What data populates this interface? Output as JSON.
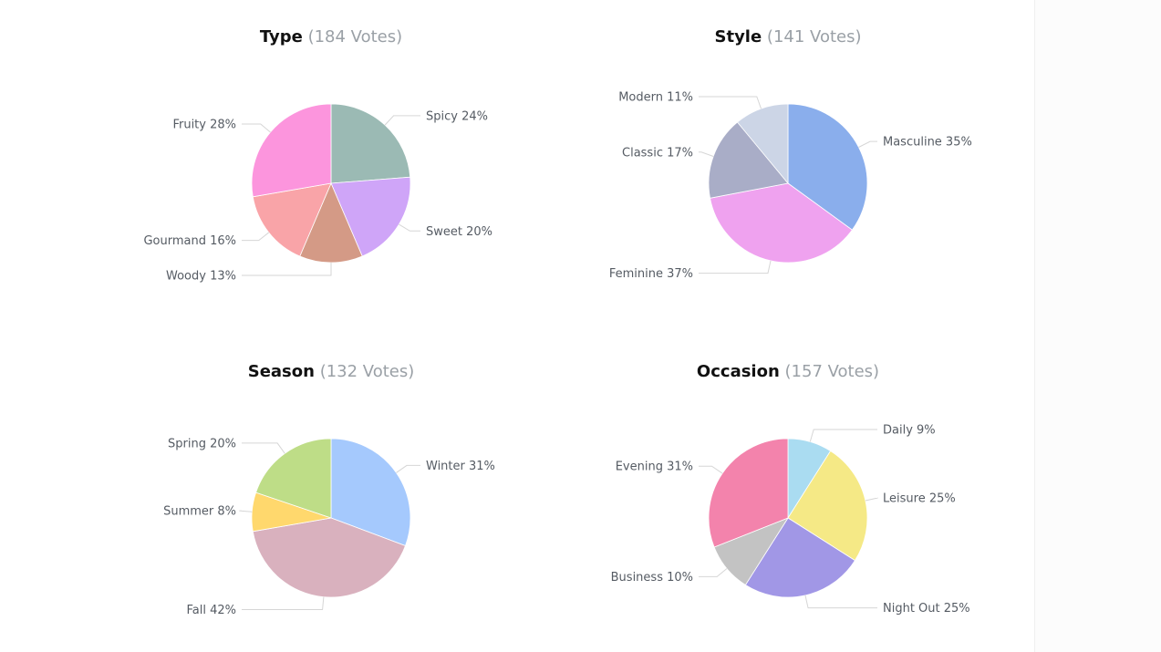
{
  "chart_data": [
    {
      "type": "pie",
      "title": "Type",
      "votes": "(184 Votes)",
      "slices": [
        {
          "label": "Spicy 24%",
          "value": 24,
          "color": "#9bbab4"
        },
        {
          "label": "Sweet 20%",
          "value": 20,
          "color": "#cfa5f8"
        },
        {
          "label": "Woody 13%",
          "value": 13,
          "color": "#d49a86"
        },
        {
          "label": "Gourmand 16%",
          "value": 16,
          "color": "#f9a4a8"
        },
        {
          "label": "Fruity 28%",
          "value": 28,
          "color": "#fc95dd"
        }
      ]
    },
    {
      "type": "pie",
      "title": "Style",
      "votes": "(141 Votes)",
      "slices": [
        {
          "label": "Masculine 35%",
          "value": 35,
          "color": "#8aaeec"
        },
        {
          "label": "Feminine 37%",
          "value": 37,
          "color": "#efa2ef"
        },
        {
          "label": "Classic 17%",
          "value": 17,
          "color": "#a9adc7"
        },
        {
          "label": "Modern 11%",
          "value": 11,
          "color": "#ccd5e6"
        }
      ]
    },
    {
      "type": "pie",
      "title": "Season",
      "votes": "(132 Votes)",
      "slices": [
        {
          "label": "Winter 31%",
          "value": 31,
          "color": "#a5c9fd"
        },
        {
          "label": "Fall 42%",
          "value": 42,
          "color": "#d9b1be"
        },
        {
          "label": "Summer 8%",
          "value": 8,
          "color": "#ffd86d"
        },
        {
          "label": "Spring 20%",
          "value": 20,
          "color": "#bedd87"
        }
      ]
    },
    {
      "type": "pie",
      "title": "Occasion",
      "votes": "(157 Votes)",
      "slices": [
        {
          "label": "Daily 9%",
          "value": 9,
          "color": "#aadcf1"
        },
        {
          "label": "Leisure 25%",
          "value": 25,
          "color": "#f5e986"
        },
        {
          "label": "Night Out 25%",
          "value": 25,
          "color": "#a197e6"
        },
        {
          "label": "Business 10%",
          "value": 10,
          "color": "#c3c3c3"
        },
        {
          "label": "Evening 31%",
          "value": 31,
          "color": "#f383ac"
        }
      ]
    }
  ]
}
